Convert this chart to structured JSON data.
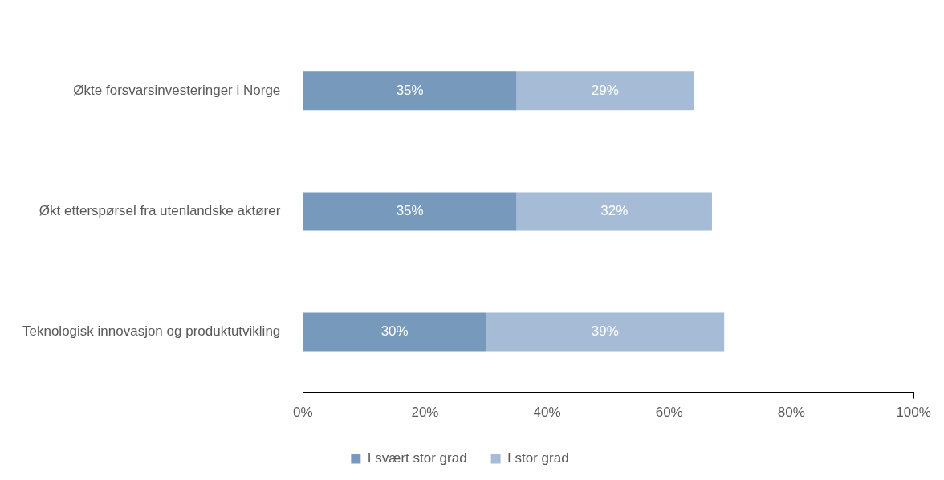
{
  "chart_data": {
    "type": "bar",
    "orientation": "horizontal",
    "stacked": true,
    "legend": "bottom",
    "categories": [
      "Økte forsvarsinvesteringer i Norge",
      "Økt etterspørsel fra utenlandske aktører",
      "Teknologisk innovasjon og produktutvikling"
    ],
    "series": [
      {
        "name": "I svært stor grad",
        "color": "#7799bb",
        "values": [
          35,
          35,
          30
        ],
        "value_labels": [
          "35%",
          "35%",
          "30%"
        ]
      },
      {
        "name": "I stor grad",
        "color": "#a6bcd6",
        "values": [
          29,
          32,
          39
        ],
        "value_labels": [
          "29%",
          "32%",
          "39%"
        ]
      }
    ],
    "xlim": [
      0,
      100
    ],
    "xticks": [
      {
        "value": 0,
        "label": "0%"
      },
      {
        "value": 20,
        "label": "20%"
      },
      {
        "value": 40,
        "label": "40%"
      },
      {
        "value": 60,
        "label": "60%"
      },
      {
        "value": 80,
        "label": "80%"
      },
      {
        "value": 100,
        "label": "100%"
      }
    ]
  }
}
